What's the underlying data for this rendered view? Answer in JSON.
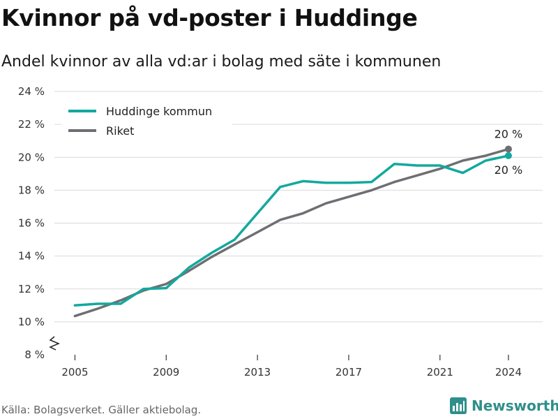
{
  "title": "Kvinnor på vd-poster i Huddinge",
  "subtitle": "Andel kvinnor av alla vd:ar i bolag med säte i kommunen",
  "source": "Källa: Bolagsverket. Gäller aktiebolag.",
  "brand": "Newsworthy",
  "colors": {
    "accent": "#13a89e",
    "national": "#6f6e73",
    "grid": "#d9d9d9",
    "brand": "#2f8f8a"
  },
  "chart_data": {
    "type": "line",
    "x": [
      2005,
      2006,
      2007,
      2008,
      2009,
      2010,
      2011,
      2012,
      2013,
      2014,
      2015,
      2016,
      2017,
      2018,
      2019,
      2020,
      2021,
      2022,
      2023,
      2024
    ],
    "xticks": [
      2005,
      2009,
      2013,
      2017,
      2021,
      2024
    ],
    "xtick_labels": [
      "2005",
      "2009",
      "2013",
      "2017",
      "2021",
      "2024"
    ],
    "yticks": [
      8,
      10,
      12,
      14,
      16,
      18,
      20,
      22,
      24
    ],
    "ytick_labels": [
      "8 %",
      "10 %",
      "12 %",
      "14 %",
      "16 %",
      "18 %",
      "20 %",
      "22 %",
      "24 %"
    ],
    "ylim": [
      8,
      24
    ],
    "y_axis_break": true,
    "grid": true,
    "legend_position": "top-left",
    "series": [
      {
        "name": "Huddinge kommun",
        "color": "#13a89e",
        "values": [
          11.0,
          11.1,
          11.1,
          12.0,
          12.05,
          13.3,
          14.2,
          15.0,
          16.6,
          18.2,
          18.55,
          18.45,
          18.45,
          18.5,
          19.6,
          19.5,
          19.5,
          19.05,
          19.8,
          20.1
        ],
        "end_label": "20 %"
      },
      {
        "name": "Riket",
        "color": "#6f6e73",
        "values": [
          10.35,
          10.8,
          11.3,
          11.9,
          12.3,
          13.1,
          13.95,
          14.7,
          15.45,
          16.2,
          16.6,
          17.2,
          17.6,
          18.0,
          18.5,
          18.9,
          19.3,
          19.8,
          20.1,
          20.5
        ],
        "end_label": "20 %"
      }
    ]
  }
}
